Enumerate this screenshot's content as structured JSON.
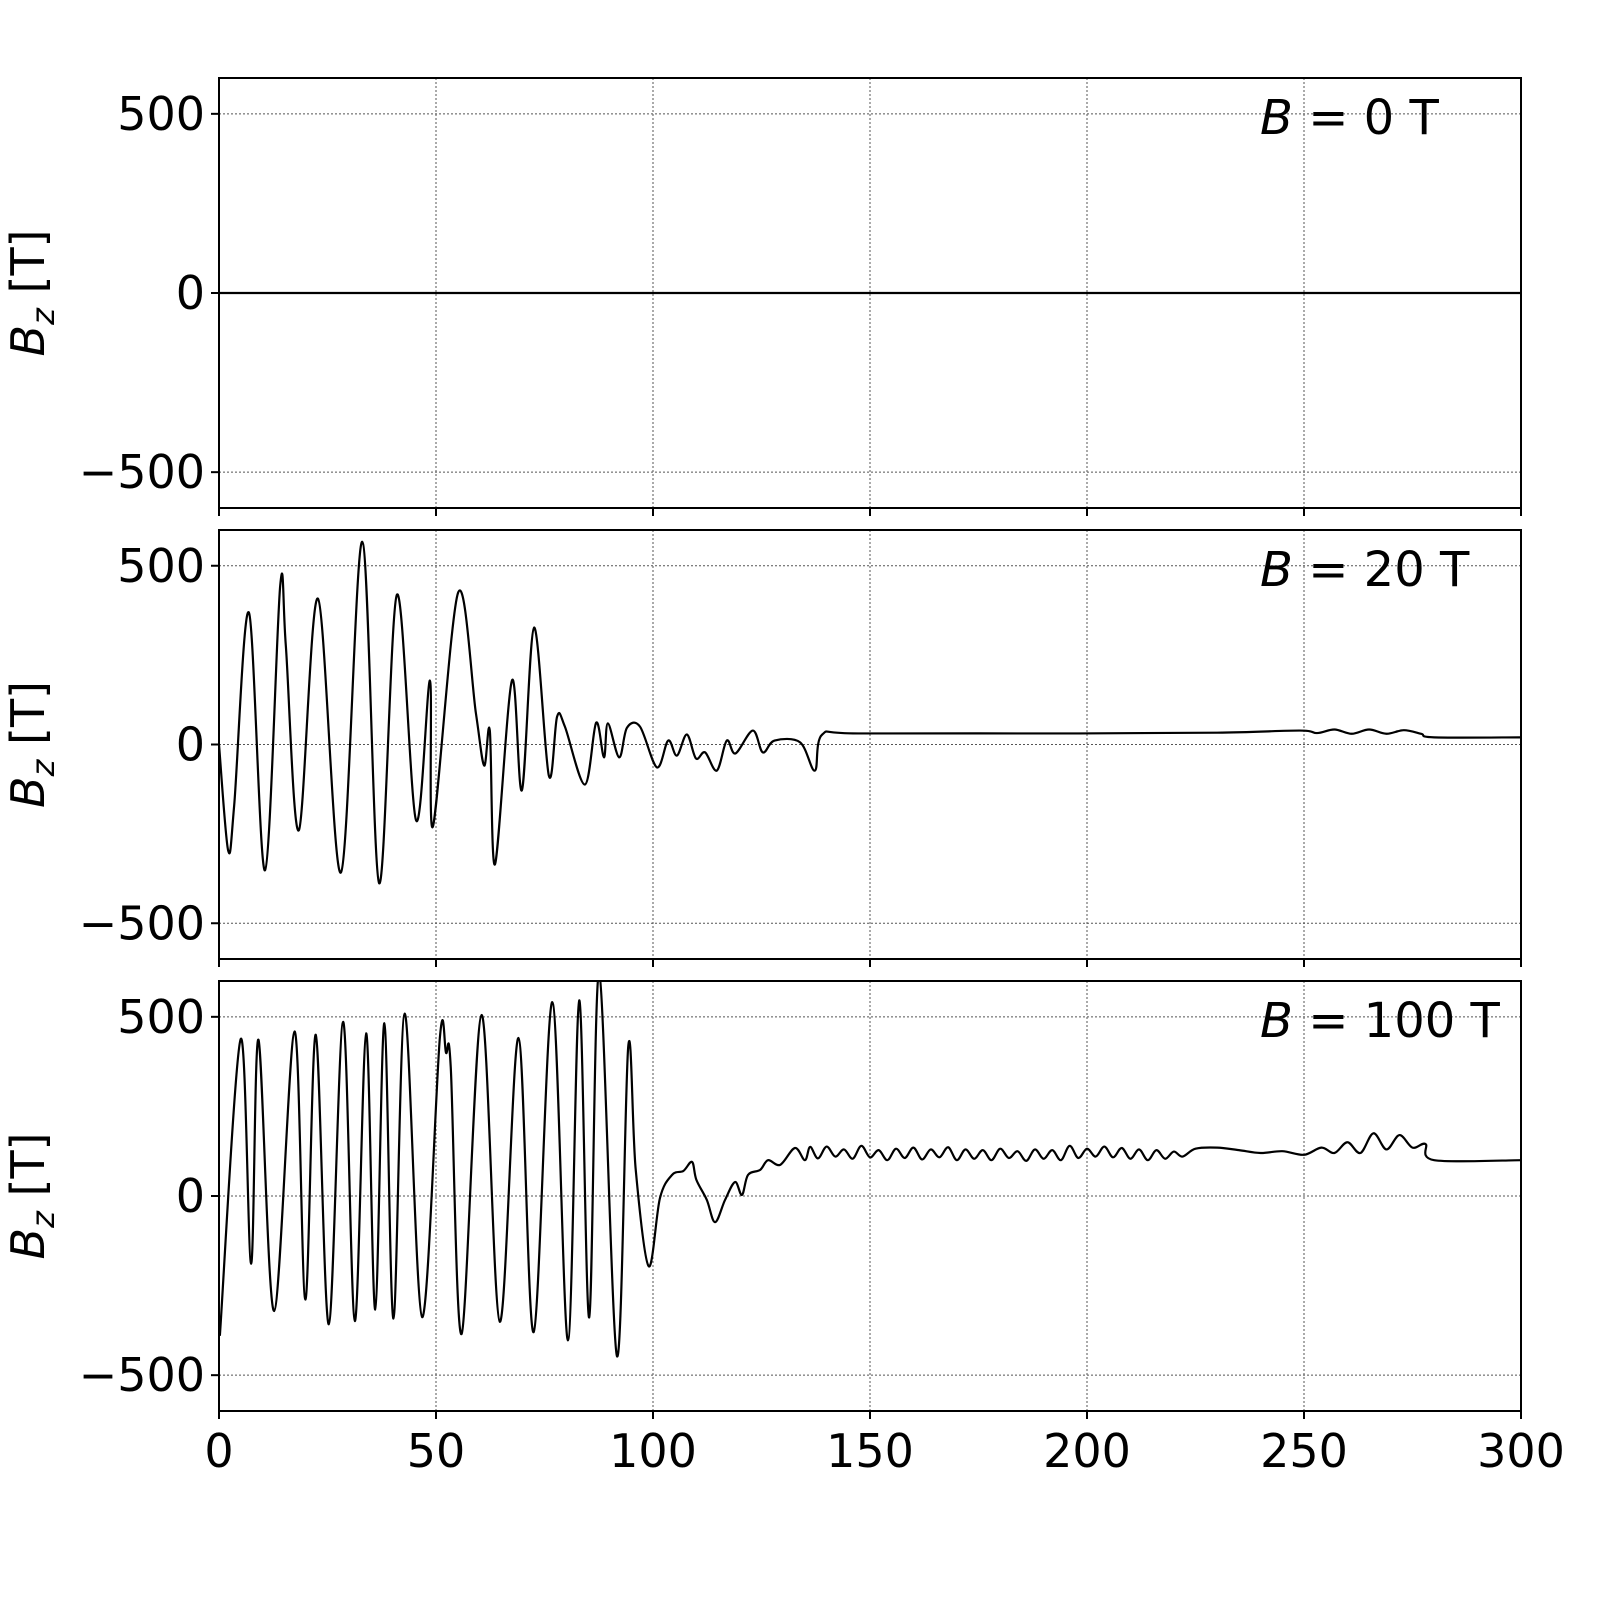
{
  "chart_data": [
    {
      "type": "line",
      "annotation": {
        "symbol": "B",
        "text": " = 0 T"
      },
      "ylabel": {
        "main": "B",
        "sub": "z",
        "unit": " [T]"
      },
      "xlim": [
        0,
        300
      ],
      "ylim": [
        -600,
        600
      ],
      "yticks": [
        -500,
        0,
        500
      ],
      "ytick_labels": [
        "−500",
        "0",
        "500"
      ],
      "xticks": [
        0,
        50,
        100,
        150,
        200,
        250,
        300
      ],
      "grid": true,
      "series": [
        {
          "color": "#000000",
          "points": [
            [
              0,
              0
            ],
            [
              300,
              0
            ]
          ]
        }
      ]
    },
    {
      "type": "line",
      "annotation": {
        "symbol": "B",
        "text": " = 20 T"
      },
      "ylabel": {
        "main": "B",
        "sub": "z",
        "unit": " [T]"
      },
      "xlim": [
        0,
        300
      ],
      "ylim": [
        -600,
        600
      ],
      "yticks": [
        -500,
        0,
        500
      ],
      "ytick_labels": [
        "−500",
        "0",
        "500"
      ],
      "xticks": [
        0,
        50,
        100,
        150,
        200,
        250,
        300
      ],
      "grid": true,
      "series": [
        {
          "color": "#000000",
          "points": [
            [
              0,
              0
            ],
            [
              2.1,
              -296
            ],
            [
              3.5,
              -170
            ],
            [
              6.9,
              369
            ],
            [
              10.6,
              -352
            ],
            [
              14.1,
              444
            ],
            [
              15.4,
              276
            ],
            [
              18.4,
              -240
            ],
            [
              22.8,
              408
            ],
            [
              28.1,
              -358
            ],
            [
              33.0,
              567
            ],
            [
              36.9,
              -388
            ],
            [
              41.0,
              419
            ],
            [
              45.4,
              -212
            ],
            [
              48.6,
              179
            ],
            [
              49.3,
              -229
            ],
            [
              55.1,
              425
            ],
            [
              59.2,
              87
            ],
            [
              61.1,
              -59
            ],
            [
              62.4,
              39
            ],
            [
              63.6,
              -335
            ],
            [
              67.5,
              179
            ],
            [
              69.8,
              -128
            ],
            [
              72.6,
              327
            ],
            [
              76.0,
              -87
            ],
            [
              77.9,
              78
            ],
            [
              79.7,
              50
            ],
            [
              84.3,
              -112
            ],
            [
              86.9,
              61
            ],
            [
              88.7,
              -36
            ],
            [
              89.6,
              59
            ],
            [
              92.2,
              -36
            ],
            [
              94,
              47
            ],
            [
              97,
              50
            ],
            [
              100.9,
              -64
            ],
            [
              103.5,
              11
            ],
            [
              105.5,
              -31
            ],
            [
              107.8,
              28
            ],
            [
              109.9,
              -39
            ],
            [
              112,
              -22
            ],
            [
              114.7,
              -73
            ],
            [
              117,
              11
            ],
            [
              119,
              -25
            ],
            [
              123,
              39
            ],
            [
              125.3,
              -22
            ],
            [
              128,
              11
            ],
            [
              133.9,
              6
            ],
            [
              137.3,
              -73
            ],
            [
              139,
              28
            ],
            [
              147.7,
              31
            ],
            [
              198,
              31
            ],
            [
              230,
              33
            ],
            [
              249,
              39
            ],
            [
              253,
              32
            ],
            [
              257,
              42
            ],
            [
              261,
              30
            ],
            [
              265,
              42
            ],
            [
              269,
              30
            ],
            [
              273,
              40
            ],
            [
              277,
              30
            ],
            [
              280,
              20
            ],
            [
              300,
              20
            ]
          ]
        }
      ]
    },
    {
      "type": "line",
      "annotation": {
        "symbol": "B",
        "text": " = 100 T"
      },
      "ylabel": {
        "main": "B",
        "sub": "z",
        "unit": " [T]"
      },
      "xlim": [
        0,
        300
      ],
      "ylim": [
        -600,
        600
      ],
      "yticks": [
        -500,
        0,
        500
      ],
      "ytick_labels": [
        "−500",
        "0",
        "500"
      ],
      "xticks": [
        0,
        50,
        100,
        150,
        200,
        250,
        300
      ],
      "xtick_labels": [
        "0",
        "50",
        "100",
        "150",
        "200",
        "250",
        "300"
      ],
      "grid": true,
      "series": [
        {
          "color": "#000000",
          "points": [
            [
              0.2,
              -390
            ],
            [
              5,
              438
            ],
            [
              7.4,
              -189
            ],
            [
              9.1,
              436
            ],
            [
              12.7,
              -321
            ],
            [
              17.4,
              459
            ],
            [
              19.9,
              -289
            ],
            [
              22.3,
              450
            ],
            [
              25.3,
              -358
            ],
            [
              28.6,
              486
            ],
            [
              31.3,
              -349
            ],
            [
              33.9,
              454
            ],
            [
              36.0,
              -317
            ],
            [
              38.1,
              482
            ],
            [
              40.2,
              -342
            ],
            [
              42.8,
              509
            ],
            [
              46.8,
              -338
            ],
            [
              50.9,
              443
            ],
            [
              52.3,
              400
            ],
            [
              53.4,
              359
            ],
            [
              55.9,
              -385
            ],
            [
              60.5,
              505
            ],
            [
              64.7,
              -351
            ],
            [
              69,
              441
            ],
            [
              72.5,
              -380
            ],
            [
              76.8,
              541
            ],
            [
              80.4,
              -403
            ],
            [
              83,
              546
            ],
            [
              85.3,
              -339
            ],
            [
              87.6,
              623
            ],
            [
              91.7,
              -447
            ],
            [
              94.3,
              418
            ],
            [
              96,
              76
            ],
            [
              99,
              -196
            ],
            [
              101.6,
              -6
            ],
            [
              104.4,
              59
            ],
            [
              107,
              70
            ],
            [
              109,
              95
            ],
            [
              110,
              45
            ],
            [
              112.4,
              -11
            ],
            [
              114.3,
              -73
            ],
            [
              116.6,
              -11
            ],
            [
              118.9,
              39
            ],
            [
              120.5,
              3
            ],
            [
              121.9,
              59
            ],
            [
              124.7,
              73
            ],
            [
              126.5,
              100
            ],
            [
              129.3,
              87
            ],
            [
              132.7,
              134
            ],
            [
              135,
              100
            ],
            [
              136.2,
              137
            ],
            [
              138,
              105
            ],
            [
              140,
              138
            ],
            [
              142,
              110
            ],
            [
              144,
              130
            ],
            [
              146,
              104
            ],
            [
              148,
              140
            ],
            [
              150,
              108
            ],
            [
              152,
              128
            ],
            [
              154,
              100
            ],
            [
              156,
              132
            ],
            [
              158,
              106
            ],
            [
              160,
              135
            ],
            [
              162,
              102
            ],
            [
              164,
              130
            ],
            [
              166,
              108
            ],
            [
              168,
              136
            ],
            [
              170,
              100
            ],
            [
              172,
              130
            ],
            [
              174,
              104
            ],
            [
              176,
              128
            ],
            [
              178,
              100
            ],
            [
              180,
              132
            ],
            [
              182,
              106
            ],
            [
              184,
              125
            ],
            [
              186,
              98
            ],
            [
              188,
              130
            ],
            [
              190,
              104
            ],
            [
              192,
              128
            ],
            [
              194,
              100
            ],
            [
              196,
              140
            ],
            [
              198,
              106
            ],
            [
              200,
              132
            ],
            [
              202,
              110
            ],
            [
              204,
              138
            ],
            [
              206,
              108
            ],
            [
              208,
              134
            ],
            [
              210,
              104
            ],
            [
              212,
              130
            ],
            [
              214,
              100
            ],
            [
              216,
              128
            ],
            [
              218,
              104
            ],
            [
              220,
              124
            ],
            [
              222,
              110
            ],
            [
              225,
              132
            ],
            [
              230,
              135
            ],
            [
              235,
              128
            ],
            [
              240,
              120
            ],
            [
              245,
              125
            ],
            [
              250,
              115
            ],
            [
              254,
              135
            ],
            [
              257,
              120
            ],
            [
              260,
              150
            ],
            [
              263,
              120
            ],
            [
              266,
              175
            ],
            [
              269,
              130
            ],
            [
              272,
              170
            ],
            [
              275,
              135
            ],
            [
              278,
              145
            ],
            [
              280,
              100
            ],
            [
              300,
              100
            ]
          ]
        }
      ]
    }
  ]
}
